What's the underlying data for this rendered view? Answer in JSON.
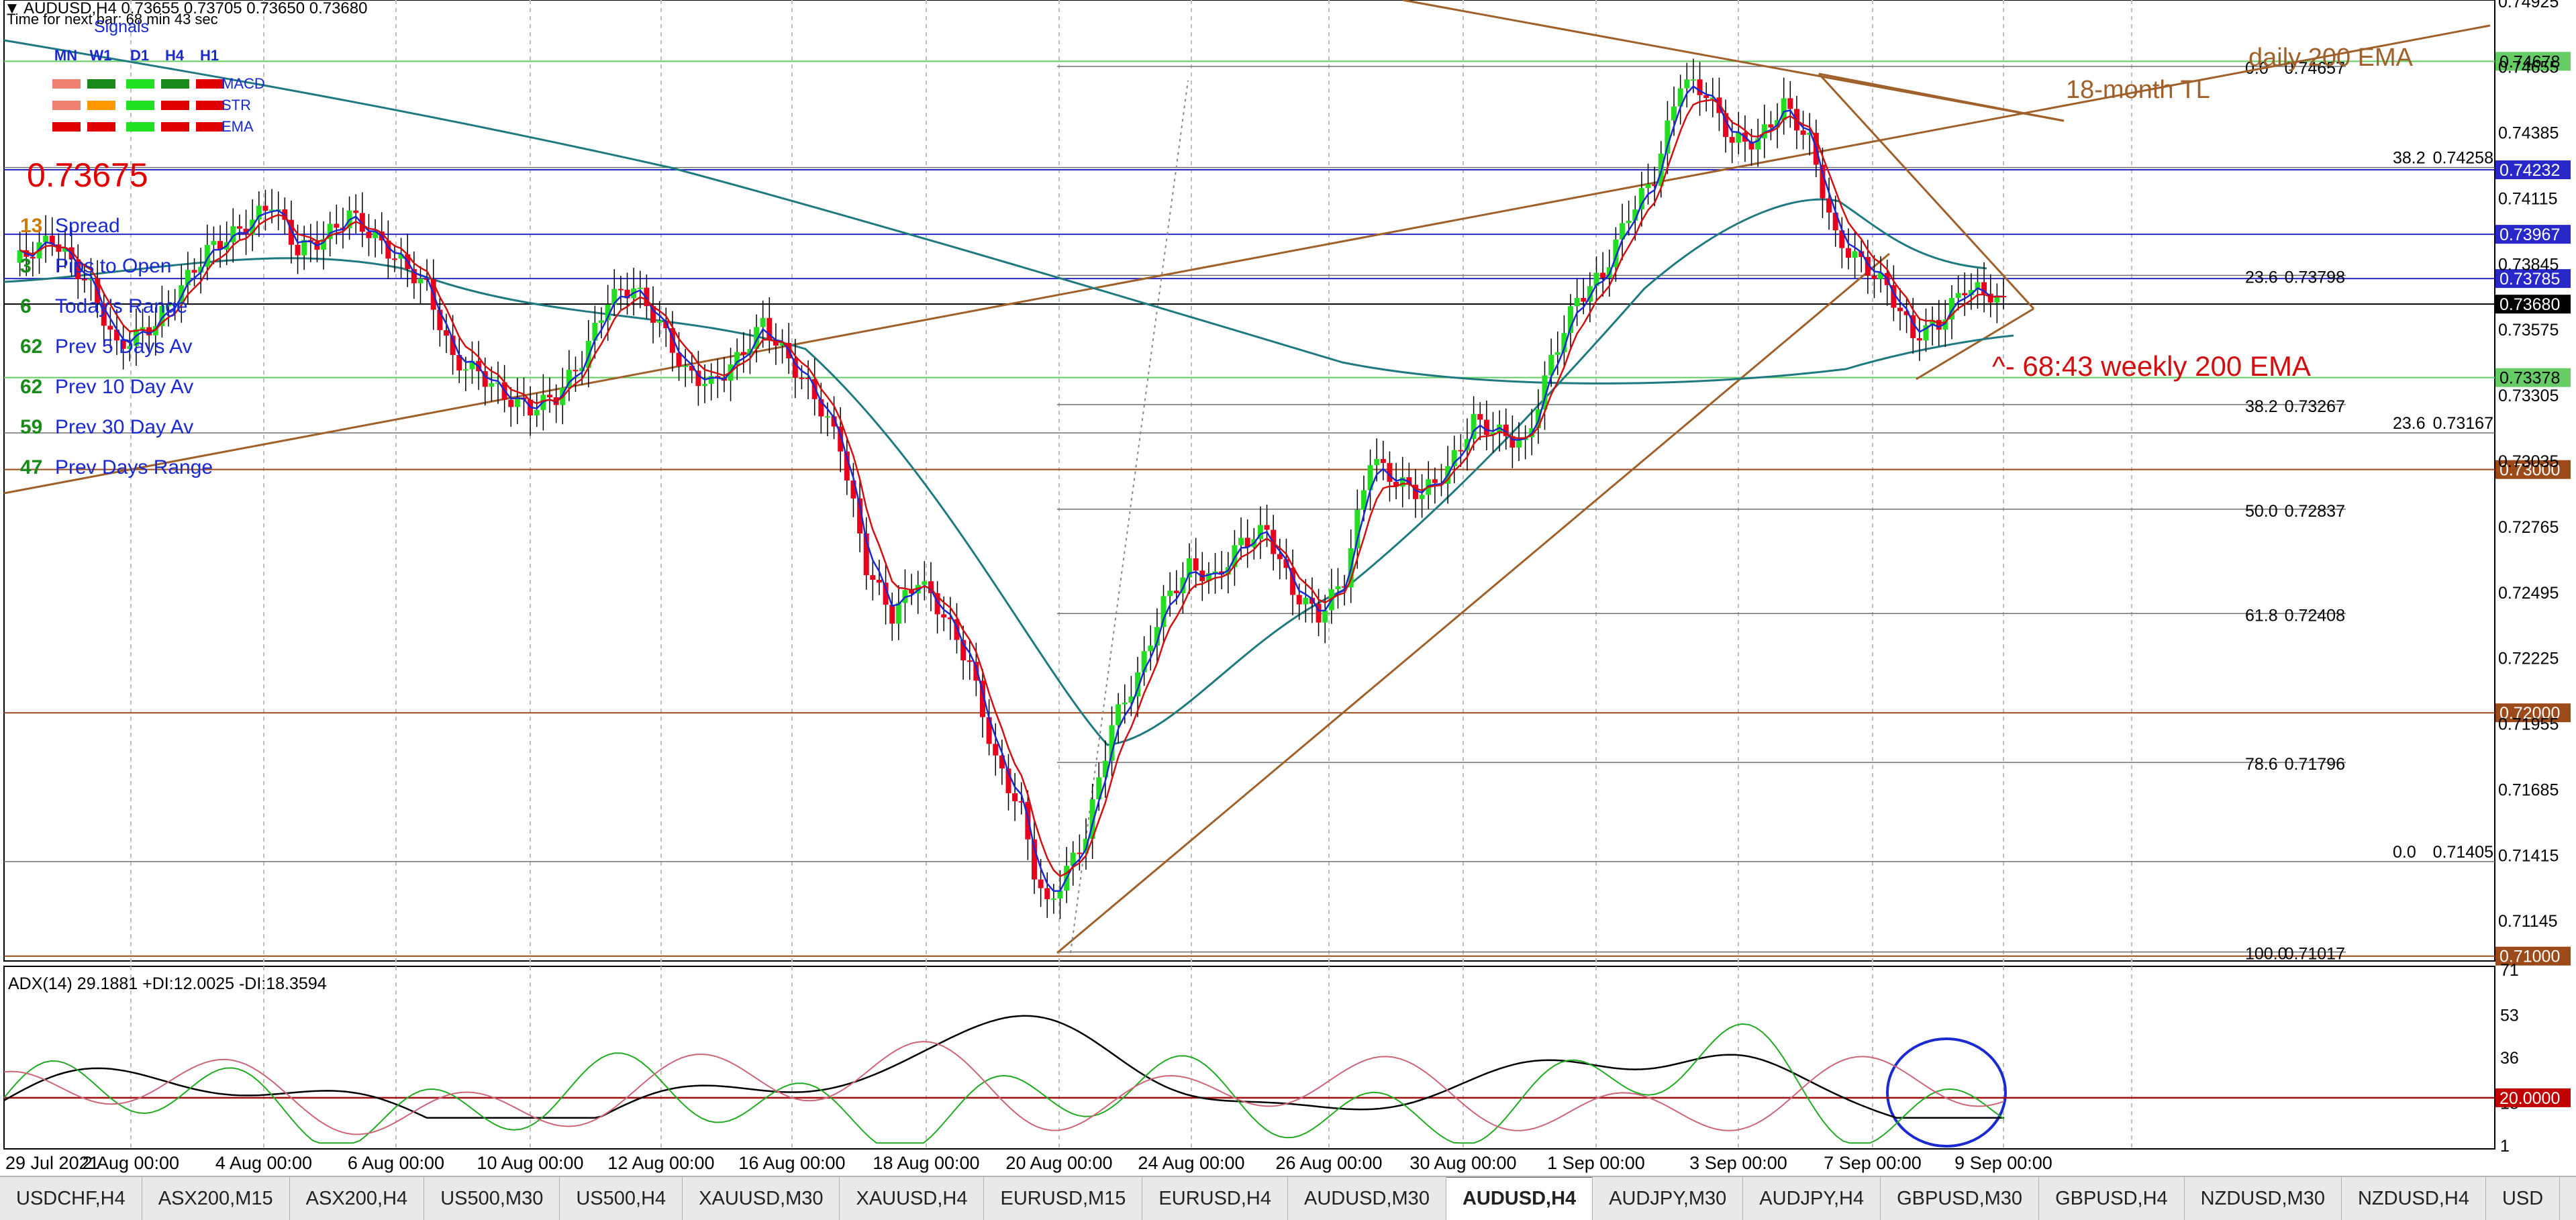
{
  "header": {
    "title": "AUDUSD,H4  0.73655 0.73705 0.73650 0.73680",
    "timer": "Time for next bar: 68 min 43 sec"
  },
  "signals": {
    "title": "Signals",
    "columns": [
      "MN",
      "W1",
      "D1",
      "H4",
      "H1"
    ],
    "rows": [
      {
        "label": "MACD",
        "colors": [
          "#f08070",
          "#1a8a1a",
          "#22e022",
          "#1a8a1a",
          "#e00000"
        ]
      },
      {
        "label": "STR",
        "colors": [
          "#f08070",
          "#ff9900",
          "#22e022",
          "#e00000",
          "#e00000"
        ]
      },
      {
        "label": "EMA",
        "colors": [
          "#e00000",
          "#e00000",
          "#22e022",
          "#e00000",
          "#e00000"
        ]
      }
    ]
  },
  "stats": {
    "price": "0.73675",
    "items": [
      {
        "value": "13",
        "label": "Spread",
        "color": "#cc7a00"
      },
      {
        "value": "3",
        "label": "Pips to Open",
        "color": "#1a8a1a"
      },
      {
        "value": "6",
        "label": "Today's Range",
        "color": "#1a8a1a"
      },
      {
        "value": "62",
        "label": "Prev 5 Days Av",
        "color": "#1a8a1a"
      },
      {
        "value": "62",
        "label": "Prev 10 Day Av",
        "color": "#1a8a1a"
      },
      {
        "value": "59",
        "label": "Prev 30 Day Av",
        "color": "#1a8a1a"
      },
      {
        "value": "47",
        "label": "Prev Days Range",
        "color": "#1a8a1a"
      }
    ]
  },
  "annotations": {
    "daily_ema": "daily 200 EMA",
    "tl": "18-month TL",
    "weekly_ema": "^- 68:43  weekly 200 EMA"
  },
  "adx": {
    "label": "ADX(14) 29.1881 +DI:12.0025 -DI:18.3594",
    "ticks": [
      "71",
      "53",
      "36",
      "18",
      "1"
    ],
    "level_label": "20.0000",
    "level": 20
  },
  "tabs": [
    {
      "label": "USDCHF,H4",
      "active": false
    },
    {
      "label": "ASX200,M15",
      "active": false
    },
    {
      "label": "ASX200,H4",
      "active": false
    },
    {
      "label": "US500,M30",
      "active": false
    },
    {
      "label": "US500,H4",
      "active": false
    },
    {
      "label": "XAUUSD,M30",
      "active": false
    },
    {
      "label": "XAUUSD,H4",
      "active": false
    },
    {
      "label": "EURUSD,M15",
      "active": false
    },
    {
      "label": "EURUSD,H4",
      "active": false
    },
    {
      "label": "AUDUSD,M30",
      "active": false
    },
    {
      "label": "AUDUSD,H4",
      "active": true
    },
    {
      "label": "AUDJPY,M30",
      "active": false
    },
    {
      "label": "AUDJPY,H4",
      "active": false
    },
    {
      "label": "GBPUSD,M30",
      "active": false
    },
    {
      "label": "GBPUSD,H4",
      "active": false
    },
    {
      "label": "NZDUSD,M30",
      "active": false
    },
    {
      "label": "NZDUSD,H4",
      "active": false
    },
    {
      "label": "USD",
      "active": false
    }
  ],
  "chart_data": {
    "type": "candlestick",
    "symbol": "AUDUSD,H4",
    "ylim": [
      0.7098,
      0.7493
    ],
    "yticks": [
      "0.74925",
      "0.74655",
      "0.74385",
      "0.74115",
      "0.73845",
      "0.73575",
      "0.73305",
      "0.73035",
      "0.72765",
      "0.72495",
      "0.72225",
      "0.71955",
      "0.71685",
      "0.71415",
      "0.71145"
    ],
    "xticks": [
      "29 Jul 2021",
      "2 Aug 00:00",
      "4 Aug 00:00",
      "6 Aug 00:00",
      "10 Aug 00:00",
      "12 Aug 00:00",
      "16 Aug 00:00",
      "18 Aug 00:00",
      "20 Aug 00:00",
      "24 Aug 00:00",
      "26 Aug 00:00",
      "30 Aug 00:00",
      "1 Sep 00:00",
      "3 Sep 00:00",
      "7 Sep 00:00",
      "9 Sep 00:00"
    ],
    "close_path": [
      [
        0,
        0.7385
      ],
      [
        6,
        0.7395
      ],
      [
        12,
        0.7375
      ],
      [
        16,
        0.735
      ],
      [
        22,
        0.736
      ],
      [
        30,
        0.739
      ],
      [
        36,
        0.74
      ],
      [
        40,
        0.741
      ],
      [
        44,
        0.739
      ],
      [
        48,
        0.7395
      ],
      [
        52,
        0.7405
      ],
      [
        56,
        0.7395
      ],
      [
        60,
        0.7385
      ],
      [
        64,
        0.7375
      ],
      [
        68,
        0.7345
      ],
      [
        72,
        0.734
      ],
      [
        76,
        0.733
      ],
      [
        80,
        0.7325
      ],
      [
        84,
        0.733
      ],
      [
        88,
        0.7345
      ],
      [
        92,
        0.737
      ],
      [
        96,
        0.7375
      ],
      [
        100,
        0.736
      ],
      [
        104,
        0.734
      ],
      [
        108,
        0.7335
      ],
      [
        112,
        0.7345
      ],
      [
        116,
        0.736
      ],
      [
        120,
        0.7345
      ],
      [
        124,
        0.733
      ],
      [
        128,
        0.731
      ],
      [
        132,
        0.726
      ],
      [
        136,
        0.724
      ],
      [
        140,
        0.7255
      ],
      [
        144,
        0.724
      ],
      [
        148,
        0.722
      ],
      [
        152,
        0.718
      ],
      [
        156,
        0.716
      ],
      [
        158,
        0.7135
      ],
      [
        160,
        0.712
      ],
      [
        162,
        0.713
      ],
      [
        166,
        0.715
      ],
      [
        170,
        0.7195
      ],
      [
        174,
        0.7215
      ],
      [
        178,
        0.7245
      ],
      [
        182,
        0.726
      ],
      [
        186,
        0.7255
      ],
      [
        190,
        0.727
      ],
      [
        194,
        0.7275
      ],
      [
        198,
        0.725
      ],
      [
        202,
        0.724
      ],
      [
        206,
        0.7255
      ],
      [
        210,
        0.7305
      ],
      [
        214,
        0.7295
      ],
      [
        218,
        0.729
      ],
      [
        222,
        0.73
      ],
      [
        226,
        0.732
      ],
      [
        230,
        0.7315
      ],
      [
        234,
        0.731
      ],
      [
        238,
        0.7345
      ],
      [
        242,
        0.737
      ],
      [
        246,
        0.738
      ],
      [
        250,
        0.7405
      ],
      [
        254,
        0.742
      ],
      [
        258,
        0.746
      ],
      [
        262,
        0.7455
      ],
      [
        266,
        0.7435
      ],
      [
        270,
        0.7435
      ],
      [
        274,
        0.745
      ],
      [
        278,
        0.7435
      ],
      [
        282,
        0.7395
      ],
      [
        286,
        0.7385
      ],
      [
        290,
        0.7375
      ],
      [
        294,
        0.7355
      ],
      [
        298,
        0.736
      ],
      [
        302,
        0.7375
      ],
      [
        306,
        0.7372
      ],
      [
        308,
        0.7368
      ]
    ],
    "horizontal_levels": [
      {
        "price": 0.74678,
        "label": "0.74678",
        "color": "#66cc66",
        "style": "solid"
      },
      {
        "price": 0.74232,
        "label": "0.74232",
        "color": "#2828c8",
        "style": "solid"
      },
      {
        "price": 0.73967,
        "label": "0.73967",
        "color": "#2828c8",
        "style": "solid"
      },
      {
        "price": 0.73785,
        "label": "0.73785",
        "color": "#2828c8",
        "style": "solid"
      },
      {
        "price": 0.7368,
        "label": "0.73680",
        "color": "#000000",
        "style": "solid"
      },
      {
        "price": 0.73378,
        "label": "0.73378",
        "color": "#66cc66",
        "style": "solid"
      },
      {
        "price": 0.73,
        "label": "0.73000",
        "color": "#9c4a1a",
        "style": "solid"
      },
      {
        "price": 0.72,
        "label": "0.72000",
        "color": "#9c4a1a",
        "style": "solid"
      },
      {
        "price": 0.71,
        "label": "0.71000",
        "color": "#9c4a1a",
        "style": "solid"
      }
    ],
    "fib_right": [
      {
        "ratio": "38.2",
        "price": "0.74258"
      },
      {
        "ratio": "23.6",
        "price": "0.73167"
      },
      {
        "ratio": "0.0",
        "price": "0.71405"
      }
    ],
    "fib_mid": [
      {
        "ratio": "0.0",
        "price": "0.74657"
      },
      {
        "ratio": "23.6",
        "price": "0.73798"
      },
      {
        "ratio": "38.2",
        "price": "0.73267"
      },
      {
        "ratio": "50.0",
        "price": "0.72837"
      },
      {
        "ratio": "61.8",
        "price": "0.72408"
      },
      {
        "ratio": "78.6",
        "price": "0.71796"
      },
      {
        "ratio": "100.0",
        "price": "0.71017"
      }
    ]
  }
}
